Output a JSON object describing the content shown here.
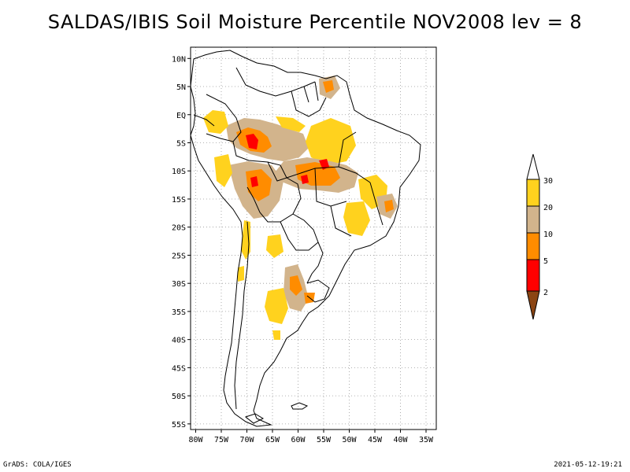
{
  "title": "SALDAS/IBIS Soil Moisture Percentile NOV2008 lev = 8",
  "lat_labels": [
    "10N",
    "5N",
    "EQ",
    "5S",
    "10S",
    "15S",
    "20S",
    "25S",
    "30S",
    "35S",
    "40S",
    "45S",
    "50S",
    "55S"
  ],
  "lon_labels": [
    "80W",
    "75W",
    "70W",
    "65W",
    "60W",
    "55W",
    "50W",
    "45W",
    "40W",
    "35W"
  ],
  "map_extent": {
    "lon_min": -81,
    "lon_max": -33,
    "lat_min": -56,
    "lat_max": 12
  },
  "colorbar": {
    "labels": [
      "30",
      "20",
      "10",
      "5",
      "2"
    ],
    "colors": [
      "#ffffff",
      "#ffd21e",
      "#d2b48c",
      "#ff8c00",
      "#ff0000",
      "#8b4513"
    ]
  },
  "colors": {
    "y30": "#ffd21e",
    "t20": "#d2b48c",
    "o10": "#ff8c00",
    "r5": "#ff0000",
    "b2": "#8b4513"
  },
  "footer": {
    "left": "GrADS: COLA/IGES",
    "right": "2021-05-12-19:21"
  }
}
